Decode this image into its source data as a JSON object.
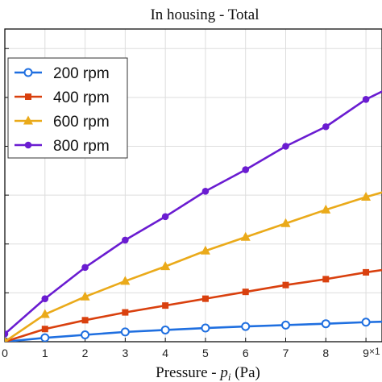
{
  "chart_data": {
    "type": "line",
    "title": "In housing - Total",
    "xlabel_parts": [
      "Pressure - ",
      "p",
      "i",
      " (Pa)"
    ],
    "x_exponent_note": "×1",
    "x": [
      0,
      1,
      2,
      3,
      4,
      5,
      6,
      7,
      8,
      9,
      10
    ],
    "xlim": [
      0,
      9.4
    ],
    "x_ticks": [
      "0",
      "1",
      "2",
      "3",
      "4",
      "5",
      "6",
      "7",
      "8",
      "9"
    ],
    "ylim": [
      0,
      1.6
    ],
    "y_ticks": [
      0,
      0.25,
      0.5,
      0.75,
      1.0,
      1.25,
      1.5
    ],
    "grid": true,
    "legend_position": "top-left",
    "series": [
      {
        "name": "200 rpm",
        "color": "#1f6fe0",
        "marker": "circle",
        "values": [
          0.0,
          0.02,
          0.035,
          0.05,
          0.06,
          0.07,
          0.078,
          0.085,
          0.092,
          0.1,
          0.106
        ]
      },
      {
        "name": "400 rpm",
        "color": "#d9400e",
        "marker": "square",
        "values": [
          0.0,
          0.065,
          0.11,
          0.15,
          0.185,
          0.22,
          0.255,
          0.29,
          0.32,
          0.355,
          0.385
        ]
      },
      {
        "name": "600 rpm",
        "color": "#eaaa1a",
        "marker": "triangle",
        "values": [
          0.0,
          0.14,
          0.23,
          0.31,
          0.385,
          0.465,
          0.535,
          0.605,
          0.675,
          0.74,
          0.8
        ]
      },
      {
        "name": "800 rpm",
        "color": "#6a1cd1",
        "marker": "circle-filled",
        "values": [
          0.04,
          0.22,
          0.38,
          0.52,
          0.64,
          0.77,
          0.88,
          1.0,
          1.1,
          1.24,
          1.34
        ]
      }
    ]
  }
}
